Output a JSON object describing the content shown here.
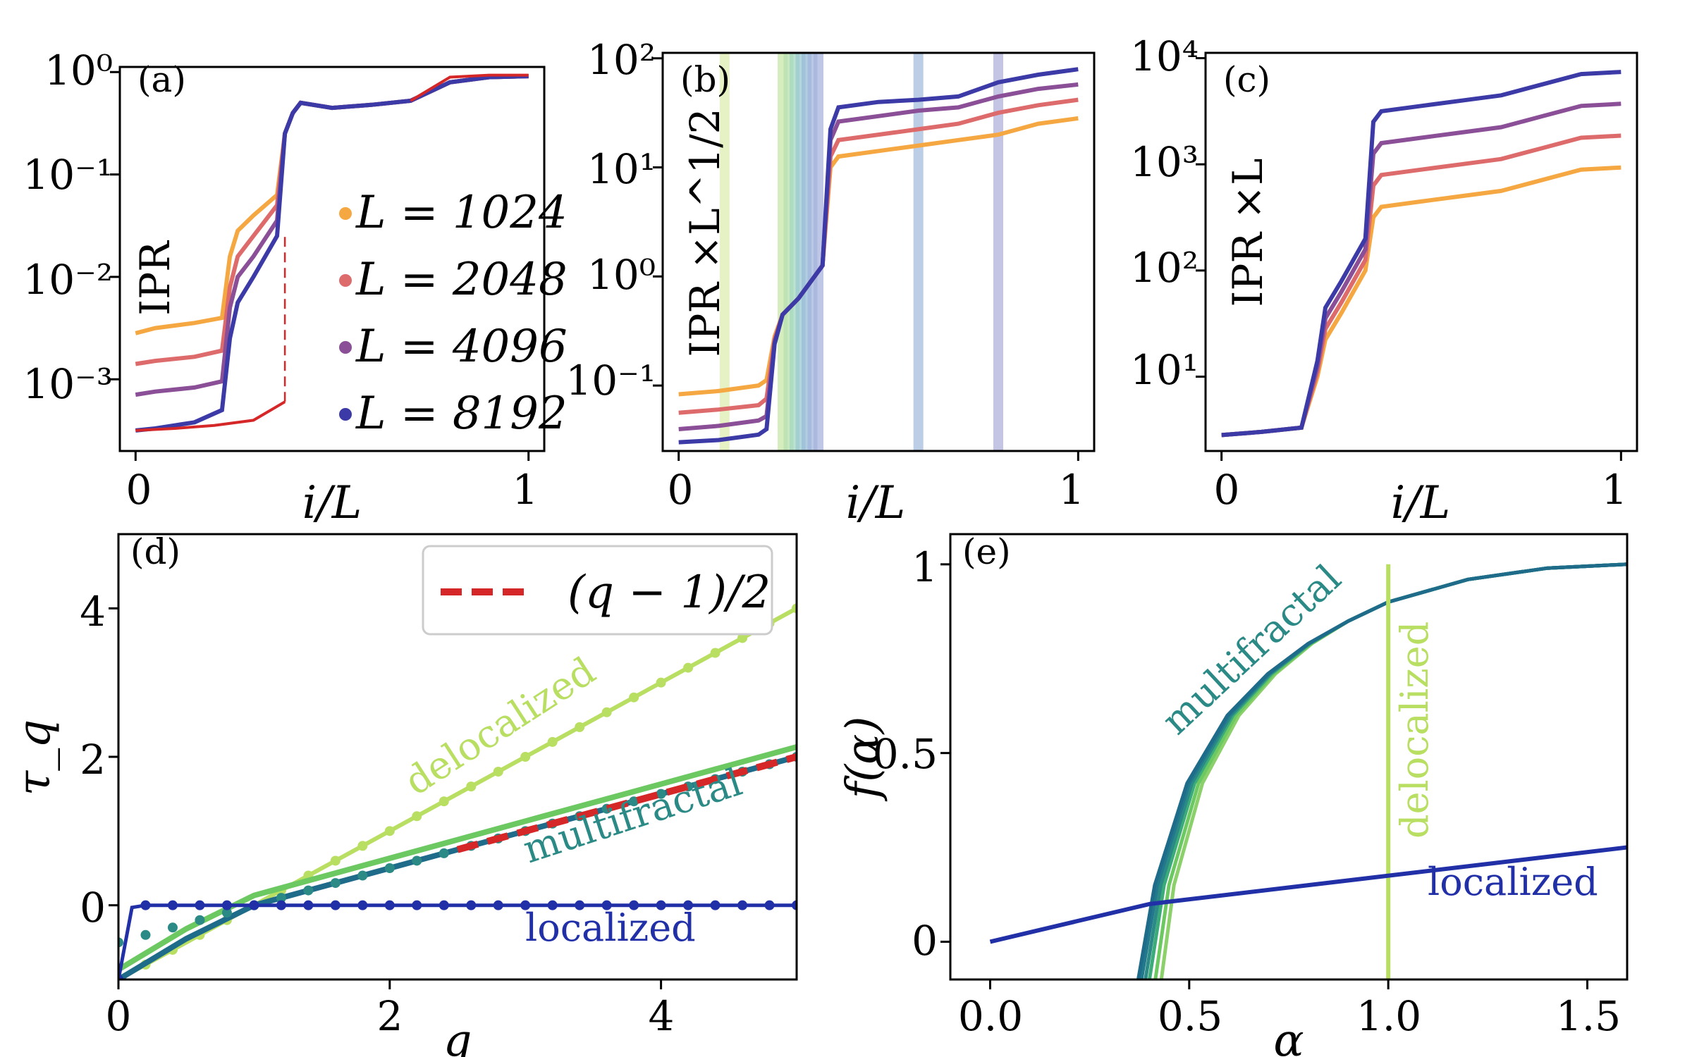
{
  "colors": {
    "L1024": "#f5a742",
    "L2048": "#de6b6b",
    "L4096": "#8a4f96",
    "L8192": "#3b3aa6",
    "red": "#d62728",
    "deloc": "#b8de62",
    "green": "#6cc861",
    "teal": "#2b8a86",
    "tealdark": "#1f6b8a",
    "navy": "#2230a8"
  },
  "chart_data": [
    {
      "type": "line",
      "panel": "(a)",
      "xlabel": "i/L",
      "ylabel": "IPR",
      "yscale": "log",
      "xlim": [
        0,
        1
      ],
      "ylim_exp": [
        -3.7,
        0.05
      ],
      "xticks": [
        "0",
        "1"
      ],
      "yticks": [
        "10⁻³",
        "10⁻²",
        "10⁻¹",
        "10⁰"
      ],
      "legend": [
        "L = 1024",
        "L = 2048",
        "L = 4096",
        "L = 8192"
      ],
      "legend_position": "center-right",
      "series": [
        {
          "name": "L = 1024",
          "x": [
            0,
            0.05,
            0.15,
            0.22,
            0.24,
            0.26,
            0.3,
            0.36,
            0.38,
            0.4,
            0.42,
            0.5,
            0.6,
            0.7,
            0.8,
            0.9,
            1.0
          ],
          "log10y": [
            -2.55,
            -2.5,
            -2.45,
            -2.4,
            -1.8,
            -1.55,
            -1.4,
            -1.2,
            -0.6,
            -0.4,
            -0.3,
            -0.35,
            -0.32,
            -0.28,
            -0.1,
            -0.05,
            -0.04
          ]
        },
        {
          "name": "L = 2048",
          "x": [
            0,
            0.05,
            0.15,
            0.22,
            0.24,
            0.26,
            0.3,
            0.36,
            0.38,
            0.4,
            0.42,
            0.5,
            0.6,
            0.7,
            0.8,
            0.9,
            1.0
          ],
          "log10y": [
            -2.85,
            -2.82,
            -2.78,
            -2.72,
            -2.1,
            -1.8,
            -1.6,
            -1.3,
            -0.6,
            -0.4,
            -0.3,
            -0.35,
            -0.32,
            -0.28,
            -0.1,
            -0.05,
            -0.04
          ]
        },
        {
          "name": "L = 4096",
          "x": [
            0,
            0.05,
            0.15,
            0.22,
            0.24,
            0.26,
            0.3,
            0.36,
            0.38,
            0.4,
            0.42,
            0.5,
            0.6,
            0.7,
            0.8,
            0.9,
            1.0
          ],
          "log10y": [
            -3.15,
            -3.12,
            -3.08,
            -3.02,
            -2.3,
            -2.0,
            -1.8,
            -1.45,
            -0.6,
            -0.4,
            -0.3,
            -0.35,
            -0.32,
            -0.28,
            -0.1,
            -0.05,
            -0.04
          ]
        },
        {
          "name": "L = 8192",
          "x": [
            0,
            0.05,
            0.15,
            0.22,
            0.24,
            0.26,
            0.3,
            0.36,
            0.38,
            0.4,
            0.42,
            0.5,
            0.6,
            0.7,
            0.8,
            0.9,
            1.0
          ],
          "log10y": [
            -3.5,
            -3.48,
            -3.42,
            -3.3,
            -2.6,
            -2.25,
            -2.0,
            -1.6,
            -0.6,
            -0.4,
            -0.3,
            -0.35,
            -0.32,
            -0.28,
            -0.1,
            -0.05,
            -0.04
          ]
        },
        {
          "name": "single",
          "x": [
            0,
            0.1,
            0.2,
            0.3,
            0.38
          ],
          "log10y": [
            -3.5,
            -3.48,
            -3.45,
            -3.4,
            -3.22
          ]
        },
        {
          "name": "single-upper",
          "x": [
            0.7,
            0.8,
            0.9,
            1.0
          ],
          "log10y": [
            -0.28,
            -0.05,
            -0.03,
            -0.03
          ]
        }
      ]
    },
    {
      "type": "line",
      "panel": "(b)",
      "xlabel": "i/L",
      "ylabel": "IPR ×L^1/2",
      "yscale": "log",
      "xlim": [
        0,
        1
      ],
      "ylim_exp": [
        -1.6,
        2.05
      ],
      "xticks": [
        "0",
        "1"
      ],
      "yticks": [
        "10⁻¹",
        "10⁰",
        "10¹",
        "10²"
      ],
      "series": [
        {
          "name": "L = 1024",
          "x": [
            0,
            0.1,
            0.2,
            0.22,
            0.24,
            0.26,
            0.3,
            0.36,
            0.38,
            0.4,
            0.5,
            0.6,
            0.7,
            0.8,
            0.9,
            1.0
          ],
          "log10y": [
            -1.08,
            -1.05,
            -1.0,
            -0.95,
            -0.55,
            -0.35,
            -0.2,
            0.1,
            1.0,
            1.1,
            1.15,
            1.2,
            1.25,
            1.3,
            1.4,
            1.45
          ]
        },
        {
          "name": "L = 2048",
          "x": [
            0,
            0.1,
            0.2,
            0.22,
            0.24,
            0.26,
            0.3,
            0.36,
            0.38,
            0.4,
            0.5,
            0.6,
            0.7,
            0.8,
            0.9,
            1.0
          ],
          "log10y": [
            -1.25,
            -1.22,
            -1.18,
            -1.12,
            -0.58,
            -0.35,
            -0.2,
            0.1,
            1.1,
            1.25,
            1.3,
            1.35,
            1.4,
            1.5,
            1.57,
            1.62
          ]
        },
        {
          "name": "L = 4096",
          "x": [
            0,
            0.1,
            0.2,
            0.22,
            0.24,
            0.26,
            0.3,
            0.36,
            0.38,
            0.4,
            0.5,
            0.6,
            0.7,
            0.8,
            0.9,
            1.0
          ],
          "log10y": [
            -1.4,
            -1.37,
            -1.32,
            -1.28,
            -0.6,
            -0.35,
            -0.2,
            0.1,
            1.25,
            1.42,
            1.47,
            1.52,
            1.55,
            1.65,
            1.72,
            1.76
          ]
        },
        {
          "name": "L = 8192",
          "x": [
            0,
            0.1,
            0.2,
            0.22,
            0.24,
            0.26,
            0.3,
            0.36,
            0.38,
            0.4,
            0.5,
            0.6,
            0.7,
            0.8,
            0.9,
            1.0
          ],
          "log10y": [
            -1.52,
            -1.5,
            -1.45,
            -1.4,
            -0.62,
            -0.35,
            -0.2,
            0.1,
            1.35,
            1.55,
            1.6,
            1.62,
            1.65,
            1.78,
            1.85,
            1.9
          ]
        }
      ],
      "bands_x": [
        0.115,
        0.26,
        0.275,
        0.29,
        0.305,
        0.32,
        0.335,
        0.35,
        0.6,
        0.8
      ]
    },
    {
      "type": "line",
      "panel": "(c)",
      "xlabel": "i/L",
      "ylabel": "IPR ×L",
      "yscale": "log",
      "xlim": [
        0,
        1
      ],
      "ylim_exp": [
        0.3,
        4.05
      ],
      "xticks": [
        "0",
        "1"
      ],
      "yticks": [
        "10¹",
        "10²",
        "10³",
        "10⁴"
      ],
      "series": [
        {
          "name": "L = 1024",
          "x": [
            0,
            0.1,
            0.2,
            0.24,
            0.26,
            0.3,
            0.36,
            0.38,
            0.4,
            0.5,
            0.6,
            0.7,
            0.8,
            0.9,
            1.0
          ],
          "log10y": [
            0.45,
            0.48,
            0.52,
            1.0,
            1.35,
            1.6,
            2.0,
            2.5,
            2.6,
            2.65,
            2.7,
            2.75,
            2.85,
            2.95,
            2.97
          ]
        },
        {
          "name": "L = 2048",
          "x": [
            0,
            0.1,
            0.2,
            0.24,
            0.26,
            0.3,
            0.36,
            0.38,
            0.4,
            0.5,
            0.6,
            0.7,
            0.8,
            0.9,
            1.0
          ],
          "log10y": [
            0.45,
            0.48,
            0.52,
            1.05,
            1.45,
            1.7,
            2.1,
            2.8,
            2.9,
            2.95,
            3.0,
            3.05,
            3.15,
            3.25,
            3.27
          ]
        },
        {
          "name": "L = 4096",
          "x": [
            0,
            0.1,
            0.2,
            0.24,
            0.26,
            0.3,
            0.36,
            0.38,
            0.4,
            0.5,
            0.6,
            0.7,
            0.8,
            0.9,
            1.0
          ],
          "log10y": [
            0.45,
            0.48,
            0.52,
            1.1,
            1.55,
            1.8,
            2.2,
            3.1,
            3.2,
            3.25,
            3.3,
            3.35,
            3.45,
            3.55,
            3.57
          ]
        },
        {
          "name": "L = 8192",
          "x": [
            0,
            0.1,
            0.2,
            0.24,
            0.26,
            0.3,
            0.36,
            0.38,
            0.4,
            0.5,
            0.6,
            0.7,
            0.8,
            0.9,
            1.0
          ],
          "log10y": [
            0.45,
            0.48,
            0.52,
            1.15,
            1.65,
            1.9,
            2.3,
            3.4,
            3.5,
            3.55,
            3.6,
            3.65,
            3.75,
            3.85,
            3.87
          ]
        }
      ]
    },
    {
      "type": "line",
      "panel": "(d)",
      "xlabel": "q",
      "ylabel": "τ_q",
      "xlim": [
        0,
        5
      ],
      "ylim": [
        -1,
        5
      ],
      "xticks": [
        "0",
        "2",
        "4"
      ],
      "yticks": [
        "0",
        "2",
        "4"
      ],
      "legend": [
        "(q − 1)/2"
      ],
      "legend_position": "top-right",
      "annotations": [
        "delocalized",
        "multifractal",
        "localized"
      ],
      "series": [
        {
          "name": "delocalized",
          "x": [
            0,
            5
          ],
          "y": [
            -1,
            4
          ]
        },
        {
          "name": "multifractal",
          "x": [
            0,
            0.5,
            1,
            2,
            3,
            4,
            5
          ],
          "y": [
            -1,
            -0.45,
            0,
            0.5,
            1.0,
            1.5,
            2.0
          ]
        },
        {
          "name": "localized",
          "x": [
            0,
            0.1,
            0.2,
            5
          ],
          "y": [
            -1,
            -0.03,
            0,
            0
          ]
        },
        {
          "name": "(q − 1)/2",
          "x": [
            2.5,
            5
          ],
          "y": [
            0.75,
            2.0
          ]
        }
      ]
    },
    {
      "type": "line",
      "panel": "(e)",
      "xlabel": "α",
      "ylabel": "f(α)",
      "xlim": [
        -0.1,
        1.6
      ],
      "ylim": [
        -0.1,
        1.08
      ],
      "xticks": [
        "0.0",
        "0.5",
        "1.0",
        "1.5"
      ],
      "yticks": [
        "0",
        "0.5",
        "1"
      ],
      "annotations": [
        "multifractal",
        "delocalized",
        "localized"
      ],
      "series": [
        {
          "name": "multifractal",
          "x": [
            0.38,
            0.42,
            0.5,
            0.6,
            0.7,
            0.8,
            0.9,
            1.0,
            1.2,
            1.4,
            1.6
          ],
          "y": [
            -0.1,
            0.15,
            0.42,
            0.6,
            0.71,
            0.79,
            0.85,
            0.9,
            0.96,
            0.99,
            1.0
          ]
        },
        {
          "name": "delocalized",
          "x": [
            1.0,
            1.0
          ],
          "y": [
            -0.1,
            1.0
          ]
        },
        {
          "name": "localized",
          "x": [
            0,
            0.4,
            1.6
          ],
          "y": [
            0,
            0.1,
            0.25
          ]
        }
      ]
    }
  ]
}
